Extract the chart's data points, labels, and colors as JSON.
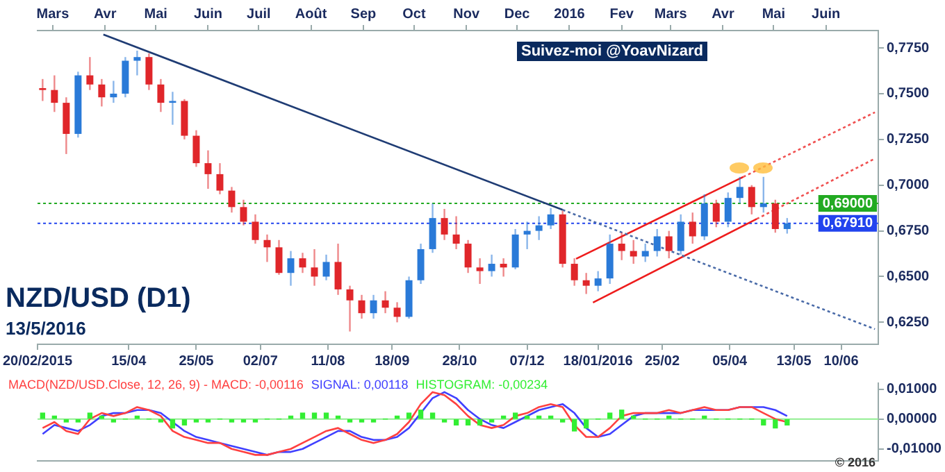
{
  "chart_data": [
    {
      "type": "candlestick",
      "title": "NZD/USD (D1)",
      "subtitle": "13/5/2016",
      "annotations": [
        "Suivez-moi @YoavNizard"
      ],
      "x": [
        "2015-02-23",
        "2015-03-02",
        "2015-03-09",
        "2015-03-16",
        "2015-03-23",
        "2015-03-30",
        "2015-04-06",
        "2015-04-13",
        "2015-04-20",
        "2015-04-27",
        "2015-05-04",
        "2015-05-11",
        "2015-05-18",
        "2015-05-25",
        "2015-06-01",
        "2015-06-08",
        "2015-06-15",
        "2015-06-22",
        "2015-06-29",
        "2015-07-06",
        "2015-07-13",
        "2015-07-20",
        "2015-07-27",
        "2015-08-03",
        "2015-08-10",
        "2015-08-17",
        "2015-08-24",
        "2015-08-31",
        "2015-09-07",
        "2015-09-14",
        "2015-09-21",
        "2015-09-28",
        "2015-10-05",
        "2015-10-12",
        "2015-10-19",
        "2015-10-26",
        "2015-11-02",
        "2015-11-09",
        "2015-11-16",
        "2015-11-23",
        "2015-11-30",
        "2015-12-07",
        "2015-12-14",
        "2015-12-21",
        "2015-12-28",
        "2016-01-04",
        "2016-01-11",
        "2016-01-18",
        "2016-01-25",
        "2016-02-01",
        "2016-02-08",
        "2016-02-15",
        "2016-02-22",
        "2016-02-29",
        "2016-03-07",
        "2016-03-14",
        "2016-03-21",
        "2016-03-28",
        "2016-04-04",
        "2016-04-11",
        "2016-04-18",
        "2016-04-25",
        "2016-05-02",
        "2016-05-09"
      ],
      "ohlc": [
        [
          0.753,
          0.758,
          0.746,
          0.752
        ],
        [
          0.752,
          0.76,
          0.74,
          0.745
        ],
        [
          0.745,
          0.748,
          0.717,
          0.728
        ],
        [
          0.728,
          0.762,
          0.726,
          0.76
        ],
        [
          0.76,
          0.77,
          0.752,
          0.755
        ],
        [
          0.755,
          0.758,
          0.743,
          0.748
        ],
        [
          0.748,
          0.757,
          0.745,
          0.75
        ],
        [
          0.75,
          0.77,
          0.748,
          0.768
        ],
        [
          0.768,
          0.7735,
          0.76,
          0.77
        ],
        [
          0.77,
          0.772,
          0.752,
          0.755
        ],
        [
          0.755,
          0.758,
          0.74,
          0.745
        ],
        [
          0.745,
          0.751,
          0.733,
          0.746
        ],
        [
          0.746,
          0.747,
          0.725,
          0.727
        ],
        [
          0.727,
          0.73,
          0.71,
          0.712
        ],
        [
          0.712,
          0.719,
          0.698,
          0.706
        ],
        [
          0.706,
          0.712,
          0.695,
          0.697
        ],
        [
          0.697,
          0.699,
          0.685,
          0.688
        ],
        [
          0.688,
          0.692,
          0.678,
          0.68
        ],
        [
          0.68,
          0.684,
          0.668,
          0.67
        ],
        [
          0.67,
          0.673,
          0.658,
          0.666
        ],
        [
          0.666,
          0.67,
          0.651,
          0.652
        ],
        [
          0.652,
          0.664,
          0.645,
          0.66
        ],
        [
          0.66,
          0.663,
          0.652,
          0.655
        ],
        [
          0.655,
          0.665,
          0.645,
          0.65
        ],
        [
          0.65,
          0.662,
          0.648,
          0.658
        ],
        [
          0.658,
          0.668,
          0.64,
          0.643
        ],
        [
          0.643,
          0.645,
          0.62,
          0.637
        ],
        [
          0.637,
          0.64,
          0.627,
          0.63
        ],
        [
          0.63,
          0.64,
          0.627,
          0.637
        ],
        [
          0.637,
          0.642,
          0.63,
          0.633
        ],
        [
          0.633,
          0.636,
          0.625,
          0.628
        ],
        [
          0.628,
          0.65,
          0.627,
          0.648
        ],
        [
          0.648,
          0.668,
          0.646,
          0.665
        ],
        [
          0.665,
          0.69,
          0.663,
          0.682
        ],
        [
          0.682,
          0.687,
          0.67,
          0.673
        ],
        [
          0.673,
          0.683,
          0.665,
          0.668
        ],
        [
          0.668,
          0.67,
          0.652,
          0.655
        ],
        [
          0.655,
          0.66,
          0.646,
          0.653
        ],
        [
          0.653,
          0.662,
          0.65,
          0.657
        ],
        [
          0.657,
          0.66,
          0.65,
          0.655
        ],
        [
          0.655,
          0.676,
          0.654,
          0.673
        ],
        [
          0.673,
          0.68,
          0.665,
          0.675
        ],
        [
          0.675,
          0.683,
          0.67,
          0.678
        ],
        [
          0.678,
          0.6875,
          0.676,
          0.684
        ],
        [
          0.684,
          0.686,
          0.655,
          0.657
        ],
        [
          0.657,
          0.66,
          0.645,
          0.648
        ],
        [
          0.648,
          0.652,
          0.6405,
          0.645
        ],
        [
          0.645,
          0.653,
          0.642,
          0.649
        ],
        [
          0.649,
          0.673,
          0.646,
          0.668
        ],
        [
          0.668,
          0.674,
          0.659,
          0.664
        ],
        [
          0.664,
          0.67,
          0.657,
          0.661
        ],
        [
          0.661,
          0.668,
          0.658,
          0.664
        ],
        [
          0.664,
          0.676,
          0.661,
          0.672
        ],
        [
          0.672,
          0.675,
          0.66,
          0.664
        ],
        [
          0.664,
          0.684,
          0.662,
          0.68
        ],
        [
          0.68,
          0.685,
          0.668,
          0.672
        ],
        [
          0.672,
          0.695,
          0.67,
          0.69
        ],
        [
          0.69,
          0.692,
          0.677,
          0.68
        ],
        [
          0.68,
          0.696,
          0.677,
          0.693
        ],
        [
          0.693,
          0.7045,
          0.69,
          0.699
        ],
        [
          0.699,
          0.7,
          0.684,
          0.688
        ],
        [
          0.688,
          0.7045,
          0.685,
          0.69
        ],
        [
          0.69,
          0.692,
          0.674,
          0.676
        ],
        [
          0.676,
          0.682,
          0.6735,
          0.6791
        ]
      ],
      "colors": [
        "#e0262a",
        "#e0262a",
        "#e0262a",
        "#2a7ad8",
        "#e0262a",
        "#e0262a",
        "#2a7ad8",
        "#2a7ad8",
        "#2a7ad8",
        "#e0262a",
        "#e0262a",
        "#2a7ad8",
        "#e0262a",
        "#e0262a",
        "#e0262a",
        "#e0262a",
        "#e0262a",
        "#e0262a",
        "#e0262a",
        "#e0262a",
        "#e0262a",
        "#2a7ad8",
        "#e0262a",
        "#e0262a",
        "#2a7ad8",
        "#e0262a",
        "#e0262a",
        "#e0262a",
        "#2a7ad8",
        "#e0262a",
        "#e0262a",
        "#2a7ad8",
        "#2a7ad8",
        "#2a7ad8",
        "#e0262a",
        "#e0262a",
        "#e0262a",
        "#e0262a",
        "#2a7ad8",
        "#e0262a",
        "#2a7ad8",
        "#2a7ad8",
        "#2a7ad8",
        "#2a7ad8",
        "#e0262a",
        "#e0262a",
        "#e0262a",
        "#2a7ad8",
        "#2a7ad8",
        "#e0262a",
        "#e0262a",
        "#2a7ad8",
        "#2a7ad8",
        "#e0262a",
        "#2a7ad8",
        "#e0262a",
        "#2a7ad8",
        "#e0262a",
        "#2a7ad8",
        "#2a7ad8",
        "#e0262a",
        "#2a7ad8",
        "#e0262a",
        "#2a7ad8"
      ],
      "series": [
        {
          "type": "line",
          "color": "#1f3c74",
          "line_style": "solid",
          "x": [
            "2015-03-31",
            "2015-12-28"
          ],
          "values": [
            0.7823,
            0.6865
          ]
        },
        {
          "type": "line",
          "color": "#4a6ba8",
          "line_style": "dotted",
          "x": [
            "2015-12-28",
            "2016-06-30"
          ],
          "values": [
            0.6865,
            0.6213
          ]
        },
        {
          "type": "line",
          "color": "#ee1c1c",
          "line_style": "solid",
          "x": [
            "2016-01-15",
            "2016-04-21"
          ],
          "values": [
            0.6358,
            0.6815
          ]
        },
        {
          "type": "line",
          "color": "#f05050",
          "line_style": "dotted",
          "x": [
            "2016-04-21",
            "2016-06-30"
          ],
          "values": [
            0.6815,
            0.7145
          ]
        },
        {
          "type": "line",
          "color": "#ee1c1c",
          "line_style": "solid",
          "x": [
            "2016-01-05",
            "2016-04-13"
          ],
          "values": [
            0.6597,
            0.7045
          ]
        },
        {
          "type": "line",
          "color": "#f05050",
          "line_style": "dotted",
          "x": [
            "2016-04-13",
            "2016-06-30"
          ],
          "values": [
            0.7045,
            0.7398
          ]
        }
      ],
      "ref_lines": [
        {
          "axis": "y",
          "value": 0.69,
          "label": "0,69000",
          "color": "#22aa22",
          "line_style": "dotted"
        },
        {
          "axis": "y",
          "value": 0.6791,
          "label": "0,67910",
          "color": "#2244ee",
          "line_style": "dotted"
        }
      ],
      "xlim": [
        "2015-02-20",
        "2016-07-02"
      ],
      "xticks": [
        {
          "value": "2015-02-20",
          "label": "20/02/2015"
        },
        {
          "value": "2015-04-15",
          "label": "15/04"
        },
        {
          "value": "2015-05-25",
          "label": "25/05"
        },
        {
          "value": "2015-07-02",
          "label": "02/07"
        },
        {
          "value": "2015-08-11",
          "label": "11/08"
        },
        {
          "value": "2015-09-18",
          "label": "18/09"
        },
        {
          "value": "2015-10-28",
          "label": "28/10"
        },
        {
          "value": "2015-12-07",
          "label": "07/12"
        },
        {
          "value": "2016-01-18",
          "label": "18/01/2016"
        },
        {
          "value": "2016-02-25",
          "label": "25/02"
        },
        {
          "value": "2016-04-05",
          "label": "05/04"
        },
        {
          "value": "2016-05-13",
          "label": "13/05"
        },
        {
          "value": "2016-06-10",
          "label": "10/06"
        }
      ],
      "x2lim": [
        "2015-02-20",
        "2016-07-02"
      ],
      "x2ticks": [
        {
          "value": "2015-03-01",
          "label": "Mars"
        },
        {
          "value": "2015-04-01",
          "label": "Avr"
        },
        {
          "value": "2015-05-01",
          "label": "Mai"
        },
        {
          "value": "2015-06-01",
          "label": "Juin"
        },
        {
          "value": "2015-07-01",
          "label": "Juil"
        },
        {
          "value": "2015-08-01",
          "label": "Août"
        },
        {
          "value": "2015-09-01",
          "label": "Sep"
        },
        {
          "value": "2015-10-01",
          "label": "Oct"
        },
        {
          "value": "2015-11-01",
          "label": "Nov"
        },
        {
          "value": "2015-12-01",
          "label": "Dec"
        },
        {
          "value": "2016-01-01",
          "label": "2016"
        },
        {
          "value": "2016-02-01",
          "label": "Fev"
        },
        {
          "value": "2016-03-01",
          "label": "Mars"
        },
        {
          "value": "2016-04-01",
          "label": "Avr"
        },
        {
          "value": "2016-05-01",
          "label": "Mai"
        },
        {
          "value": "2016-06-01",
          "label": "Juin"
        }
      ],
      "ylim": [
        0.613,
        0.7845
      ],
      "yticks": [
        {
          "value": 0.625,
          "label": "0,6250"
        },
        {
          "value": 0.65,
          "label": "0,6500"
        },
        {
          "value": 0.675,
          "label": "0,6750"
        },
        {
          "value": 0.7,
          "label": "0,7000"
        },
        {
          "value": 0.725,
          "label": "0,7250"
        },
        {
          "value": 0.75,
          "label": "0,7500"
        },
        {
          "value": 0.775,
          "label": "0,7750"
        }
      ]
    },
    {
      "type": "line",
      "annotations": [
        "© 2016"
      ],
      "legend": "top left",
      "tick_labels": "y",
      "x": [
        "2015-02-23",
        "2015-03-02",
        "2015-03-09",
        "2015-03-16",
        "2015-03-23",
        "2015-03-30",
        "2015-04-06",
        "2015-04-13",
        "2015-04-20",
        "2015-04-27",
        "2015-05-04",
        "2015-05-11",
        "2015-05-18",
        "2015-05-25",
        "2015-06-01",
        "2015-06-08",
        "2015-06-15",
        "2015-06-22",
        "2015-06-29",
        "2015-07-06",
        "2015-07-13",
        "2015-07-20",
        "2015-07-27",
        "2015-08-03",
        "2015-08-10",
        "2015-08-17",
        "2015-08-24",
        "2015-08-31",
        "2015-09-07",
        "2015-09-14",
        "2015-09-21",
        "2015-09-28",
        "2015-10-05",
        "2015-10-12",
        "2015-10-19",
        "2015-10-26",
        "2015-11-02",
        "2015-11-09",
        "2015-11-16",
        "2015-11-23",
        "2015-11-30",
        "2015-12-07",
        "2015-12-14",
        "2015-12-21",
        "2015-12-28",
        "2016-01-04",
        "2016-01-11",
        "2016-01-18",
        "2016-01-25",
        "2016-02-01",
        "2016-02-08",
        "2016-02-15",
        "2016-02-22",
        "2016-02-29",
        "2016-03-07",
        "2016-03-14",
        "2016-03-21",
        "2016-03-28",
        "2016-04-04",
        "2016-04-11",
        "2016-04-18",
        "2016-04-25",
        "2016-05-02",
        "2016-05-09"
      ],
      "series": [
        {
          "name": "HISTOGRAM: -0,00234",
          "type": "bar",
          "color": "#33ee33",
          "values": [
            0.002,
            0.001,
            -0.001,
            -0.001,
            0.002,
            0.001,
            -0.001,
            0,
            0.001,
            0,
            -0.001,
            -0.003,
            -0.002,
            -0.001,
            -0.001,
            0,
            -0.001,
            -0.001,
            -0.001,
            0,
            0,
            0.001,
            0.002,
            0.002,
            0.002,
            0.001,
            -0.001,
            -0.001,
            -0.001,
            0,
            0.001,
            0.002,
            0.003,
            0.002,
            -0.001,
            -0.002,
            -0.002,
            -0.002,
            -0.001,
            0.001,
            0.002,
            0.001,
            0.001,
            0.001,
            -0.001,
            -0.004,
            -0.003,
            0,
            0.002,
            0.003,
            0.001,
            0,
            0,
            0.001,
            0,
            0,
            0.001,
            0,
            0,
            0,
            0,
            -0.002,
            -0.003,
            -0.002
          ]
        },
        {
          "name": "MACD(NZD/USD.Close, 12, 26, 9) - MACD: -0,00116",
          "color": "#ff4040",
          "values": [
            -0.003,
            -0.001,
            -0.004,
            -0.005,
            0,
            0.002,
            0.001,
            0.002,
            0.004,
            0.003,
            0.001,
            -0.004,
            -0.006,
            -0.007,
            -0.008,
            -0.008,
            -0.01,
            -0.011,
            -0.012,
            -0.012,
            -0.011,
            -0.01,
            -0.008,
            -0.006,
            -0.004,
            -0.003,
            -0.005,
            -0.007,
            -0.008,
            -0.007,
            -0.005,
            -0.001,
            0.005,
            0.009,
            0.008,
            0.005,
            0.001,
            -0.002,
            -0.003,
            -0.002,
            0.001,
            0.002,
            0.004,
            0.005,
            0.004,
            -0.002,
            -0.006,
            -0.006,
            -0.003,
            0.001,
            0.002,
            0.002,
            0.002,
            0.003,
            0.002,
            0.003,
            0.004,
            0.003,
            0.003,
            0.004,
            0.004,
            0.002,
            0,
            -0.001
          ]
        },
        {
          "name": "SIGNAL: 0,00118",
          "color": "#4040ff",
          "values": [
            -0.005,
            -0.002,
            -0.003,
            -0.004,
            -0.002,
            0.001,
            0.002,
            0.002,
            0.003,
            0.003,
            0.002,
            -0.001,
            -0.004,
            -0.006,
            -0.007,
            -0.008,
            -0.009,
            -0.01,
            -0.011,
            -0.012,
            -0.011,
            -0.011,
            -0.01,
            -0.008,
            -0.006,
            -0.004,
            -0.004,
            -0.006,
            -0.007,
            -0.007,
            -0.006,
            -0.003,
            0.002,
            0.007,
            0.009,
            0.007,
            0.003,
            0,
            -0.002,
            -0.003,
            -0.001,
            0.001,
            0.003,
            0.004,
            0.005,
            0.002,
            -0.003,
            -0.006,
            -0.005,
            -0.002,
            0.001,
            0.002,
            0.002,
            0.002,
            0.002,
            0.003,
            0.003,
            0.003,
            0.003,
            0.004,
            0.004,
            0.004,
            0.003,
            0.001
          ]
        }
      ],
      "ref_lines": [
        {
          "axis": "y",
          "value": 0,
          "color": "#90ee90",
          "line_style": "solid"
        }
      ],
      "xlim": [
        "2015-02-20",
        "2016-07-02"
      ],
      "ylim": [
        -0.014,
        0.012
      ],
      "yticks": [
        {
          "value": -0.01,
          "label": "-0,01000"
        },
        {
          "value": 0,
          "label": "0,00000"
        },
        {
          "value": 0.01,
          "label": "0,01000"
        }
      ]
    }
  ]
}
